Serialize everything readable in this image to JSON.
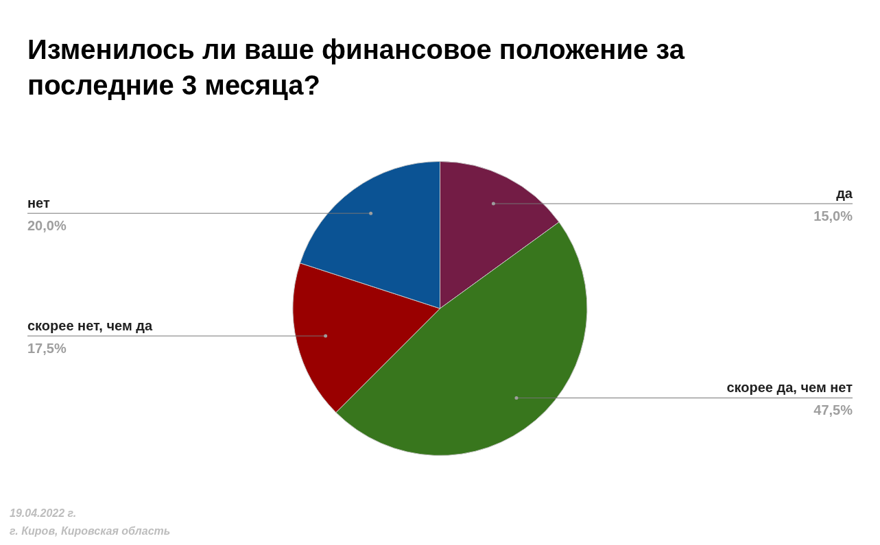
{
  "chart_data": {
    "type": "pie",
    "title": "Изменилось ли ваше финансовое положение за последние 3 месяца?",
    "categories": [
      "да",
      "скорее да, чем нет",
      "скорее нет, чем да",
      "нет"
    ],
    "values": [
      15.0,
      47.5,
      17.5,
      20.0
    ],
    "colors": [
      "#731c45",
      "#38761d",
      "#990000",
      "#0b5394"
    ],
    "value_labels": [
      "15,0%",
      "47,5%",
      "17,5%",
      "20,0%"
    ],
    "annotations": [
      "19.04.2022 г.",
      "г. Киров, Кировская область"
    ]
  }
}
